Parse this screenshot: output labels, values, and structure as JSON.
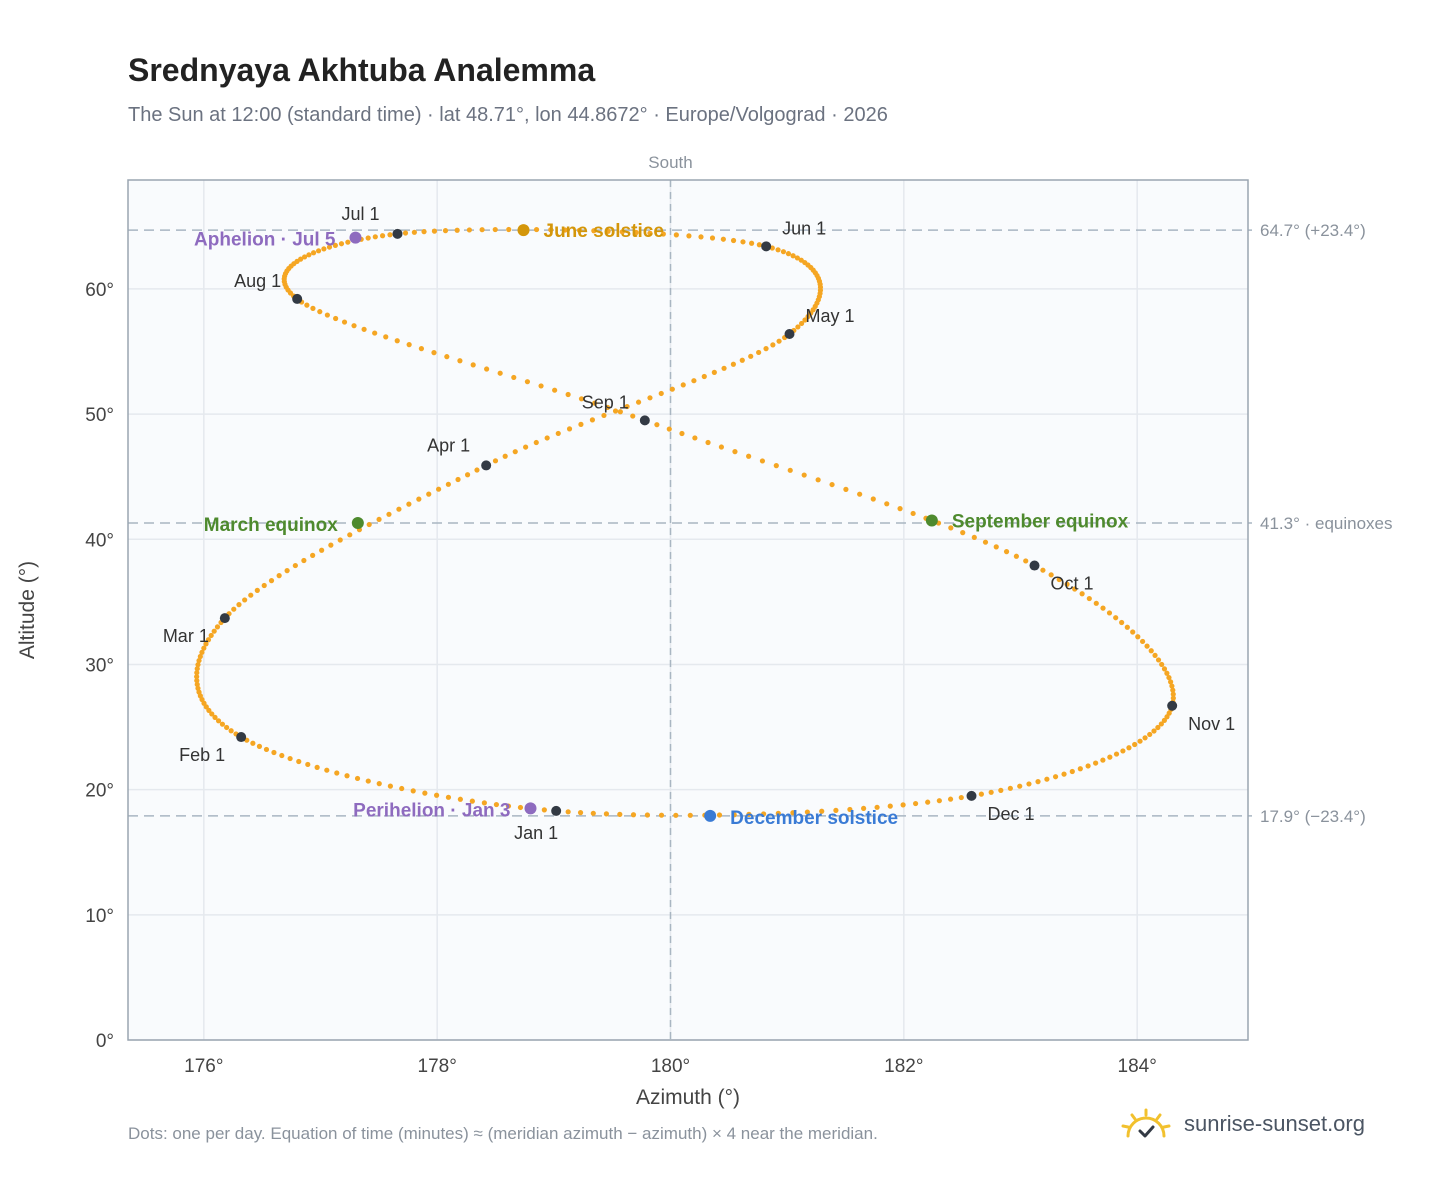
{
  "header": {
    "title": "Srednyaya Akhtuba Analemma",
    "subtitle": "The Sun at 12:00 (standard time) · lat 48.71°, lon 44.8672° · Europe/Volgograd · 2026"
  },
  "footer": {
    "note": "Dots: one per day. Equation of time (minutes) ≈ (meridian azimuth − azimuth) × 4 near the meridian.",
    "brand": "sunrise-sunset.org"
  },
  "colors": {
    "curve": "#f5a623",
    "month_marker": "#333a44",
    "june_solstice": "#d4960a",
    "december_solstice": "#3a7bd5",
    "equinox": "#4e8a2e",
    "apsis": "#8e6bbf",
    "reference_line": "#a9b6c2",
    "plot_bg": "#f9fbfd",
    "grid": "#e5e9ee",
    "axis_text": "#444444",
    "ref_text": "#8a929c"
  },
  "chart_data": {
    "type": "scatter",
    "xlabel": "Azimuth (°)",
    "ylabel": "Altitude (°)",
    "xlim": [
      175.35,
      184.95
    ],
    "ylim": [
      0,
      68.7
    ],
    "xticks": [
      176,
      178,
      180,
      182,
      184
    ],
    "yticks": [
      0,
      10,
      20,
      30,
      40,
      50,
      60
    ],
    "tick_suffix": "°",
    "meridian": {
      "x": 180,
      "label": "South"
    },
    "reference_lines": [
      {
        "y": 64.7,
        "label": "64.7° (+23.4°)"
      },
      {
        "y": 41.3,
        "label": "41.3° · equinoxes"
      },
      {
        "y": 17.9,
        "label": "17.9° (−23.4°)"
      }
    ],
    "series": [
      {
        "points": [
          [
            179.02,
            18.3
          ],
          [
            176.32,
            24.2
          ],
          [
            176.18,
            33.7
          ],
          [
            178.42,
            45.9
          ],
          [
            181.02,
            56.4
          ],
          [
            180.82,
            63.4
          ],
          [
            177.66,
            64.4
          ],
          [
            176.8,
            59.2
          ],
          [
            179.78,
            49.5
          ],
          [
            183.12,
            37.9
          ],
          [
            184.3,
            26.7
          ],
          [
            182.58,
            19.5
          ],
          [
            179.02,
            18.3
          ]
        ]
      }
    ],
    "month_markers": [
      {
        "label": "Jan 1",
        "x": 179.02,
        "y": 18.3
      },
      {
        "label": "Feb 1",
        "x": 176.32,
        "y": 24.2
      },
      {
        "label": "Mar 1",
        "x": 176.18,
        "y": 33.7
      },
      {
        "label": "Apr 1",
        "x": 178.42,
        "y": 45.9
      },
      {
        "label": "May 1",
        "x": 181.02,
        "y": 56.4
      },
      {
        "label": "Jun 1",
        "x": 180.82,
        "y": 63.4
      },
      {
        "label": "Jul 1",
        "x": 177.66,
        "y": 64.4
      },
      {
        "label": "Aug 1",
        "x": 176.8,
        "y": 59.2
      },
      {
        "label": "Sep 1",
        "x": 179.78,
        "y": 49.5
      },
      {
        "label": "Oct 1",
        "x": 183.12,
        "y": 37.9
      },
      {
        "label": "Nov 1",
        "x": 184.3,
        "y": 26.7
      },
      {
        "label": "Dec 1",
        "x": 182.58,
        "y": 19.5
      }
    ],
    "events": [
      {
        "label": "June solstice",
        "x": 178.74,
        "y": 64.7,
        "kind": "june_solstice"
      },
      {
        "label": "December solstice",
        "x": 180.34,
        "y": 17.9,
        "kind": "december_solstice"
      },
      {
        "label": "March equinox",
        "x": 177.32,
        "y": 41.3,
        "kind": "equinox"
      },
      {
        "label": "September equinox",
        "x": 182.24,
        "y": 41.5,
        "kind": "equinox"
      },
      {
        "label": "Aphelion · Jul 5",
        "x": 177.3,
        "y": 64.1,
        "kind": "apsis"
      },
      {
        "label": "Perihelion · Jan 3",
        "x": 178.8,
        "y": 18.5,
        "kind": "apsis"
      }
    ]
  }
}
